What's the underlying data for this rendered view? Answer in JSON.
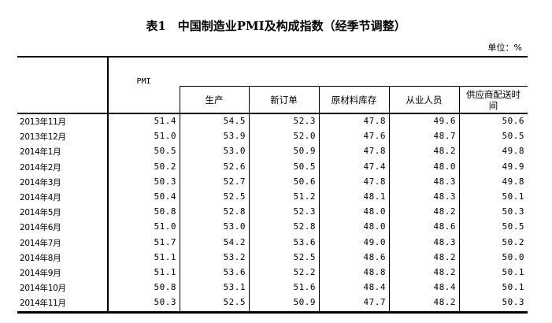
{
  "title": "表1　中国制造业PMI及构成指数（经季节调整）",
  "unit": "单位：%",
  "header": {
    "pmi": "PMI",
    "sub": [
      "生产",
      "新订单",
      "原材料库存",
      "从业人员",
      "供应商配送时间"
    ]
  },
  "rows": [
    [
      "2013年11月",
      "51.4",
      "54.5",
      "52.3",
      "47.8",
      "49.6",
      "50.6"
    ],
    [
      "2013年12月",
      "51.0",
      "53.9",
      "52.0",
      "47.6",
      "48.7",
      "50.5"
    ],
    [
      "2014年1月",
      "50.5",
      "53.0",
      "50.9",
      "47.8",
      "48.2",
      "49.8"
    ],
    [
      "2014年2月",
      "50.2",
      "52.6",
      "50.5",
      "47.4",
      "48.0",
      "49.9"
    ],
    [
      "2014年3月",
      "50.3",
      "52.7",
      "50.6",
      "47.8",
      "48.3",
      "49.8"
    ],
    [
      "2014年4月",
      "50.4",
      "52.5",
      "51.2",
      "48.1",
      "48.3",
      "50.1"
    ],
    [
      "2014年5月",
      "50.8",
      "52.8",
      "52.3",
      "48.0",
      "48.2",
      "50.3"
    ],
    [
      "2014年6月",
      "51.0",
      "53.0",
      "52.8",
      "48.0",
      "48.6",
      "50.5"
    ],
    [
      "2014年7月",
      "51.7",
      "54.2",
      "53.6",
      "49.0",
      "48.3",
      "50.2"
    ],
    [
      "2014年8月",
      "51.1",
      "53.2",
      "52.5",
      "48.6",
      "48.2",
      "50.0"
    ],
    [
      "2014年9月",
      "51.1",
      "53.6",
      "52.2",
      "48.8",
      "48.2",
      "50.1"
    ],
    [
      "2014年10月",
      "50.8",
      "53.1",
      "51.6",
      "48.4",
      "48.4",
      "50.1"
    ],
    [
      "2014年11月",
      "50.3",
      "52.5",
      "50.9",
      "47.7",
      "48.2",
      "50.3"
    ]
  ]
}
